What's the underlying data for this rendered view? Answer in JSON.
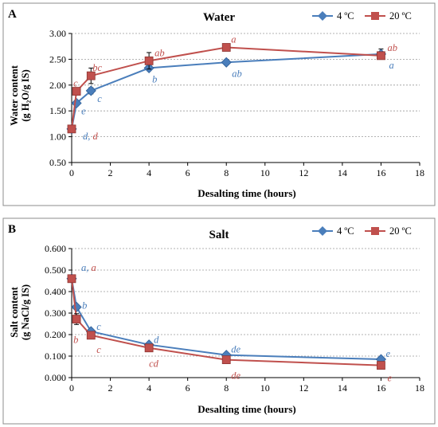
{
  "colors": {
    "s4": "#4a7ebb",
    "s20": "#c0504d"
  },
  "chart_data": [
    {
      "type": "line",
      "panel": "A",
      "title": "Water",
      "xlabel": "Desalting time (hours)",
      "ylabel_lines": [
        "Water content",
        "(g H₂O/g IS)"
      ],
      "xlim": [
        0,
        18
      ],
      "ylim": [
        0.5,
        3.0
      ],
      "xticks": [
        0,
        2,
        4,
        6,
        8,
        10,
        12,
        14,
        16,
        18
      ],
      "yticks": [
        0.5,
        1.0,
        1.5,
        2.0,
        2.5,
        3.0
      ],
      "ytick_labels": [
        "0.50",
        "1.00",
        "1.50",
        "2.00",
        "2.50",
        "3.00"
      ],
      "grid": "horizontal dashed",
      "legend": "top-right",
      "series": [
        {
          "name": "4 ºC",
          "color": "#4a7ebb",
          "marker": "diamond",
          "x": [
            0,
            0.25,
            1,
            4,
            8,
            16
          ],
          "y": [
            1.15,
            1.65,
            1.89,
            2.33,
            2.44,
            2.6
          ],
          "err": [
            0.04,
            0.05,
            0.06,
            0.05,
            0.05,
            0.1
          ],
          "letters": [
            "",
            "e",
            "c",
            "b",
            "ab",
            "a"
          ]
        },
        {
          "name": "20 ºC",
          "color": "#c0504d",
          "marker": "square",
          "x": [
            0,
            0.25,
            1,
            4,
            8,
            16
          ],
          "y": [
            1.15,
            1.88,
            2.18,
            2.47,
            2.73,
            2.57
          ],
          "err": [
            0.04,
            0.05,
            0.15,
            0.16,
            0.04,
            0.07
          ],
          "letters": [
            "",
            "c",
            "bc",
            "ab",
            "a",
            "ab"
          ]
        }
      ],
      "shared_letter": {
        "x": 0,
        "parts": [
          "d, ",
          "d"
        ]
      }
    },
    {
      "type": "line",
      "panel": "B",
      "title": "Salt",
      "xlabel": "Desalting time (hours)",
      "ylabel_lines": [
        "Salt content",
        "(g NaCl/g IS)"
      ],
      "xlim": [
        0,
        18
      ],
      "ylim": [
        0,
        0.6
      ],
      "xticks": [
        0,
        2,
        4,
        6,
        8,
        10,
        12,
        14,
        16,
        18
      ],
      "yticks": [
        0,
        0.1,
        0.2,
        0.3,
        0.4,
        0.5,
        0.6
      ],
      "ytick_labels": [
        "0.000",
        "0.100",
        "0.200",
        "0.300",
        "0.400",
        "0.500",
        "0.600"
      ],
      "grid": "horizontal dashed",
      "legend": "top-right",
      "series": [
        {
          "name": "4 ºC",
          "color": "#4a7ebb",
          "marker": "diamond",
          "x": [
            0,
            0.25,
            1,
            4,
            8,
            16
          ],
          "y": [
            0.46,
            0.328,
            0.215,
            0.153,
            0.105,
            0.085
          ],
          "err": [
            0.015,
            0.012,
            0.006,
            0.006,
            0.004,
            0.004
          ],
          "letters": [
            "",
            "b",
            "c",
            "d",
            "de",
            "e"
          ]
        },
        {
          "name": "20 ºC",
          "color": "#c0504d",
          "marker": "square",
          "x": [
            0,
            0.25,
            1,
            4,
            8,
            16
          ],
          "y": [
            0.46,
            0.272,
            0.197,
            0.138,
            0.083,
            0.057
          ],
          "err": [
            0.015,
            0.025,
            0.006,
            0.006,
            0.004,
            0.004
          ],
          "letters": [
            "",
            "b",
            "c",
            "cd",
            "de",
            "e"
          ]
        }
      ],
      "shared_letter": {
        "x": 0,
        "parts": [
          "a, ",
          "a"
        ]
      }
    }
  ]
}
